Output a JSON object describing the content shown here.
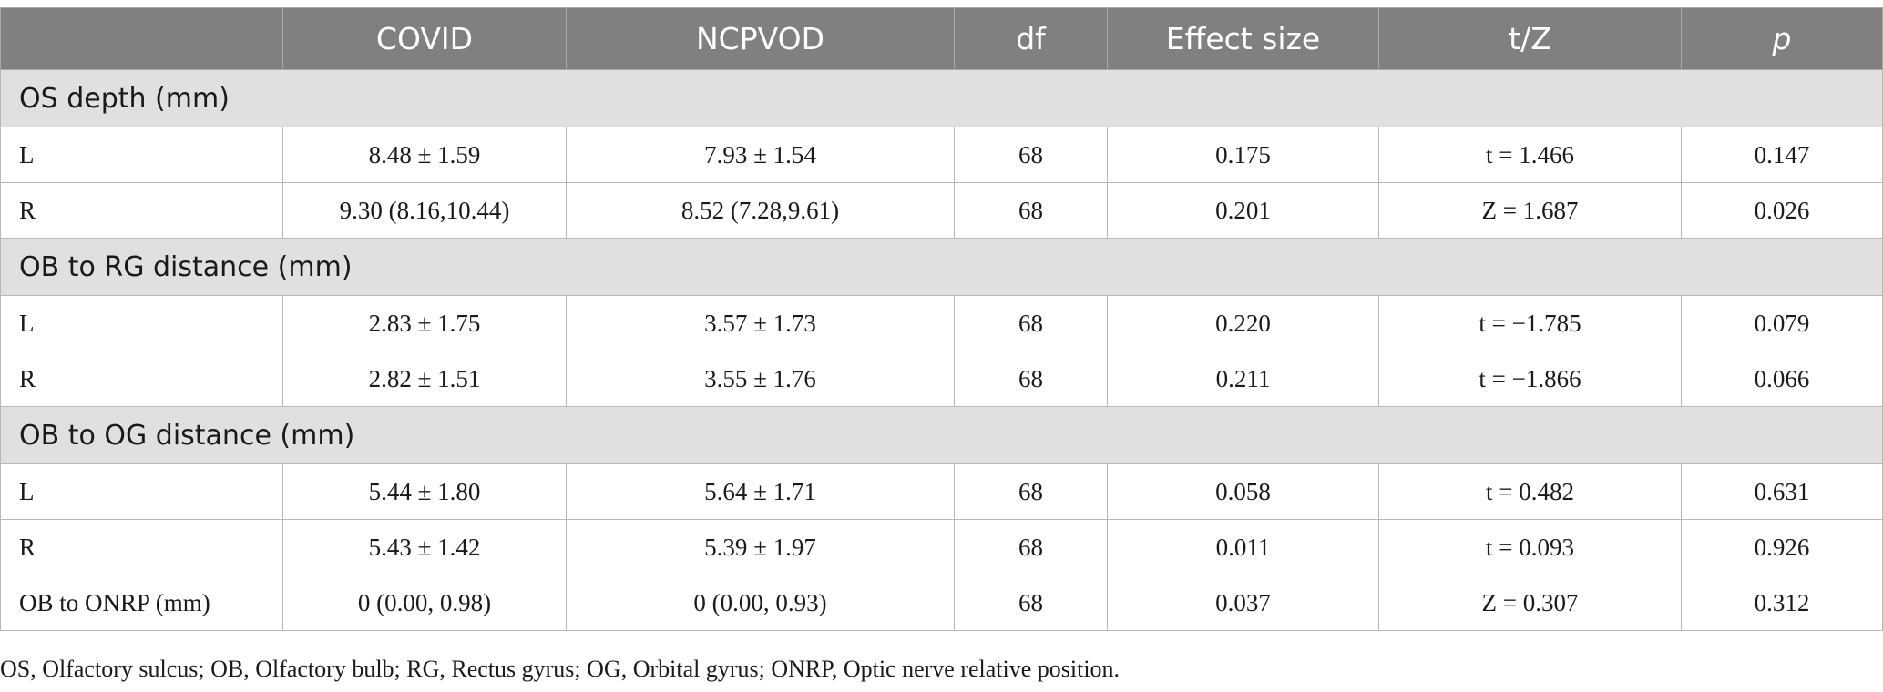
{
  "table": {
    "columns": [
      "",
      "COVID",
      "NCPVOD",
      "df",
      "Effect size",
      "t/Z",
      "p"
    ],
    "sections": [
      {
        "title": "OS depth (mm)",
        "rows": [
          [
            "L",
            "8.48 ± 1.59",
            "7.93 ± 1.54",
            "68",
            "0.175",
            "t = 1.466",
            "0.147"
          ],
          [
            "R",
            "9.30 (8.16,10.44)",
            "8.52 (7.28,9.61)",
            "68",
            "0.201",
            "Z = 1.687",
            "0.026"
          ]
        ]
      },
      {
        "title": "OB to RG distance (mm)",
        "rows": [
          [
            "L",
            "2.83 ± 1.75",
            "3.57 ± 1.73",
            "68",
            "0.220",
            "t = −1.785",
            "0.079"
          ],
          [
            "R",
            "2.82 ± 1.51",
            "3.55 ± 1.76",
            "68",
            "0.211",
            "t = −1.866",
            "0.066"
          ]
        ]
      },
      {
        "title": "OB to OG distance (mm)",
        "rows": [
          [
            "L",
            "5.44 ± 1.80",
            "5.64 ± 1.71",
            "68",
            "0.058",
            "t = 0.482",
            "0.631"
          ],
          [
            "R",
            "5.43 ± 1.42",
            "5.39 ± 1.97",
            "68",
            "0.011",
            "t = 0.093",
            "0.926"
          ],
          [
            "OB to ONRP (mm)",
            "0 (0.00, 0.98)",
            "0 (0.00, 0.93)",
            "68",
            "0.037",
            "Z = 0.307",
            "0.312"
          ]
        ]
      }
    ]
  },
  "footnote": "OS, Olfactory sulcus; OB, Olfactory bulb; RG, Rectus gyrus; OG, Orbital gyrus; ONRP, Optic nerve relative position."
}
